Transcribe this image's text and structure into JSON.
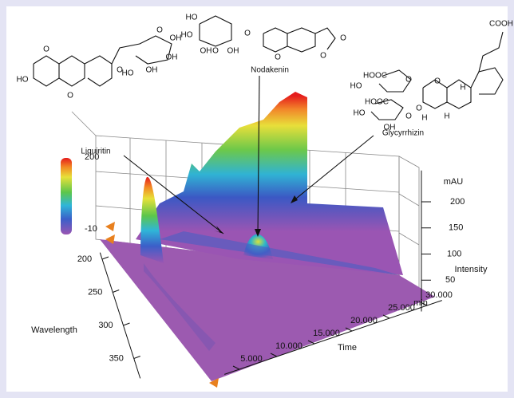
{
  "chart_data": {
    "type": "surface3d",
    "annotations": [
      "Liquiritin",
      "Nodakenin",
      "Glycyrrhizin"
    ],
    "xlabel": "Time",
    "xunit": "min",
    "xlim": [
      3,
      32
    ],
    "xticks": [
      {
        "value": 5,
        "label": "5.000"
      },
      {
        "value": 10,
        "label": "10.000"
      },
      {
        "value": 15,
        "label": "15.000"
      },
      {
        "value": 20,
        "label": "20.000"
      },
      {
        "value": 25,
        "label": "25.000"
      },
      {
        "value": 30,
        "label": "30.000"
      }
    ],
    "ylabel": "Wavelength",
    "ylim": [
      190,
      380
    ],
    "yticks": [
      200,
      250,
      300,
      350
    ],
    "zlabel": "Intensity",
    "zunit": "mAU",
    "zlim": [
      -10,
      260
    ],
    "zticks": [
      50,
      100,
      150,
      200
    ],
    "colorbar_ticks": [
      200,
      -10
    ],
    "structures": [
      [
        "HO",
        "O",
        "O",
        "O",
        "O",
        "OH",
        "OH",
        "HO",
        "OH"
      ],
      [
        "HO",
        "HO",
        "O",
        "O",
        "OH",
        "OH",
        "O",
        "O",
        "O"
      ],
      [
        "COOH",
        "HOOC",
        "HO",
        "O",
        "HOOC",
        "HO",
        "O",
        "OH",
        "O",
        "O",
        "H",
        "H",
        "H"
      ]
    ]
  }
}
